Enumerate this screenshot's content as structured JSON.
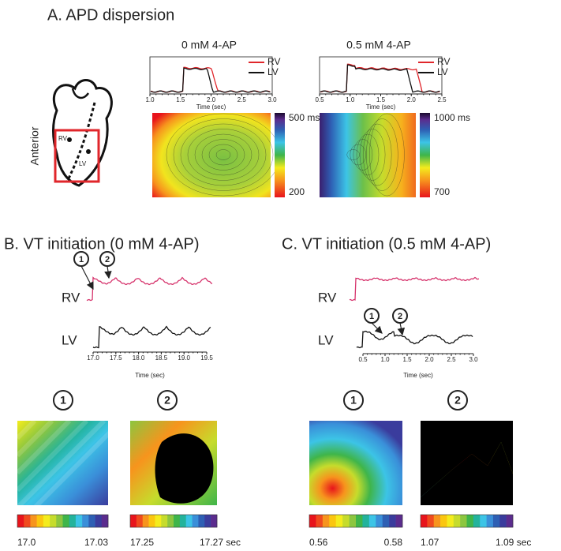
{
  "panel_a": {
    "title": "A. APD dispersion",
    "heart": {
      "side": "Anterior",
      "rv": "RV",
      "lv": "LV"
    },
    "conditions": [
      {
        "title": "0 mM 4-AP",
        "legend": [
          "RV",
          "LV"
        ],
        "xticks": [
          "1.0",
          "1.5",
          "2.0",
          "2.5",
          "3.0"
        ],
        "xlabel": "Time (sec)",
        "colorbar": {
          "max": "500 ms",
          "min": "200"
        }
      },
      {
        "title": "0.5 mM 4-AP",
        "legend": [
          "RV",
          "LV"
        ],
        "xticks": [
          "0.5",
          "1.0",
          "1.5",
          "2.0",
          "2.5"
        ],
        "xlabel": "Time (sec)",
        "colorbar": {
          "max": "1000 ms",
          "min": "700"
        }
      }
    ]
  },
  "panel_b": {
    "title": "B. VT initiation (0 mM 4-AP)",
    "markers": [
      "1",
      "2"
    ],
    "traces": [
      "RV",
      "LV"
    ],
    "xticks": [
      "17.0",
      "17.5",
      "18.0",
      "18.5",
      "19.0",
      "19.5"
    ],
    "xlabel": "Time (sec)",
    "maps": [
      {
        "start": "17.0",
        "end": "17.03"
      },
      {
        "start": "17.25",
        "end": "17.27 sec"
      }
    ]
  },
  "panel_c": {
    "title": "C. VT initiation (0.5 mM 4-AP)",
    "markers": [
      "1",
      "2"
    ],
    "traces": [
      "RV",
      "LV"
    ],
    "xticks": [
      "0.5",
      "1.0",
      "1.5",
      "2.0",
      "2.5",
      "3.0"
    ],
    "xlabel": "Time (sec)",
    "maps": [
      {
        "start": "0.56",
        "end": "0.58"
      },
      {
        "start": "1.07",
        "end": "1.09 sec"
      }
    ]
  }
}
